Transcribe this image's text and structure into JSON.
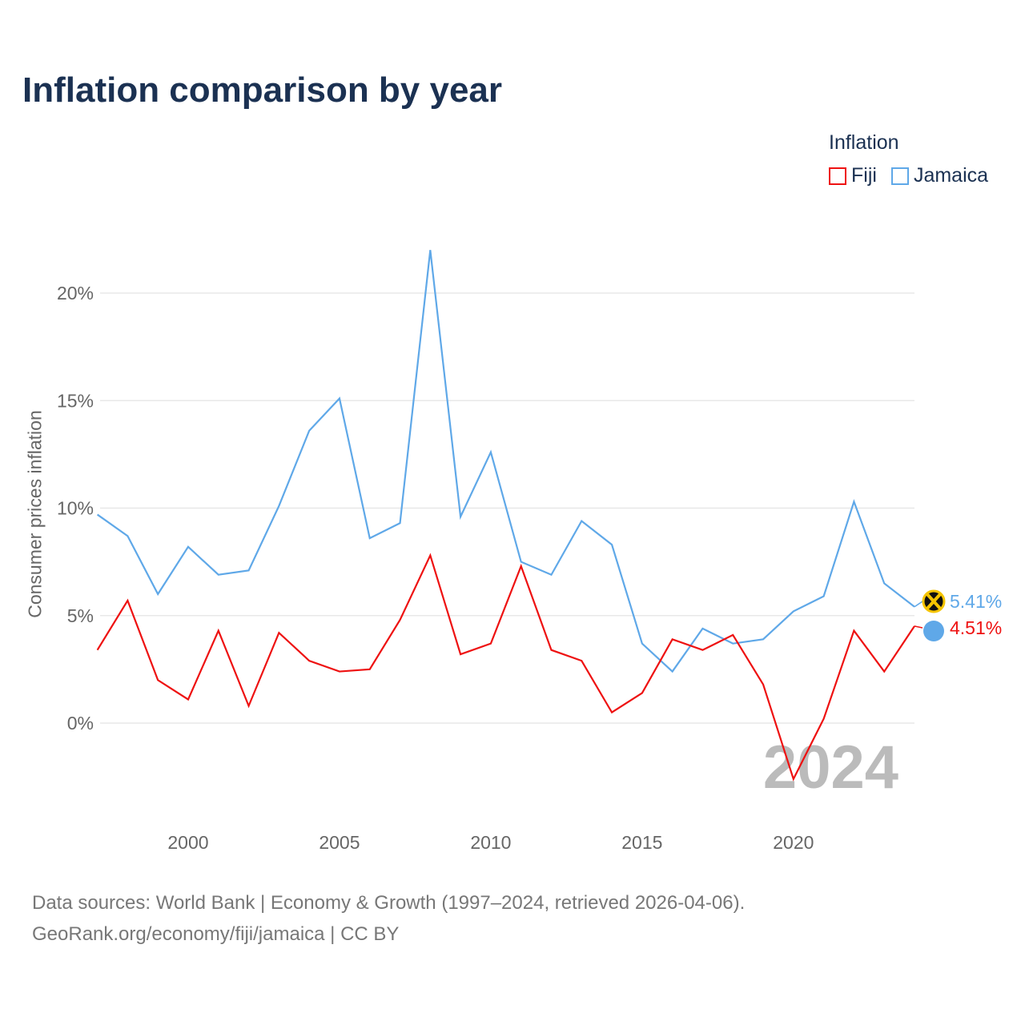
{
  "title": "Inflation comparison by year",
  "legend": {
    "title": "Inflation",
    "items": [
      "Fiji",
      "Jamaica"
    ]
  },
  "footer": {
    "line1": "Data sources: World Bank | Economy & Growth (1997–2024, retrieved 2026-04-06).",
    "line2": "GeoRank.org/economy/fiji/jamaica | CC BY"
  },
  "chart_data": {
    "type": "line",
    "title": "Inflation comparison by year",
    "xlabel": "",
    "ylabel": "Consumer prices inflation",
    "x": [
      1997,
      1998,
      1999,
      2000,
      2001,
      2002,
      2003,
      2004,
      2005,
      2006,
      2007,
      2008,
      2009,
      2010,
      2011,
      2012,
      2013,
      2014,
      2015,
      2016,
      2017,
      2018,
      2019,
      2020,
      2021,
      2022,
      2023,
      2024
    ],
    "series": [
      {
        "name": "Fiji",
        "color": "#ee1111",
        "values": [
          3.4,
          5.7,
          2.0,
          1.1,
          4.3,
          0.8,
          4.2,
          2.9,
          2.4,
          2.5,
          4.8,
          7.8,
          3.2,
          3.7,
          7.3,
          3.4,
          2.9,
          0.5,
          1.4,
          3.9,
          3.4,
          4.1,
          1.8,
          -2.6,
          0.2,
          4.3,
          2.4,
          4.51
        ],
        "end_label": "4.51%"
      },
      {
        "name": "Jamaica",
        "color": "#5fa8e8",
        "values": [
          9.7,
          8.7,
          6.0,
          8.2,
          6.9,
          7.1,
          10.1,
          13.6,
          15.1,
          8.6,
          9.3,
          22.0,
          9.6,
          12.6,
          7.5,
          6.9,
          9.4,
          8.3,
          3.7,
          2.4,
          4.4,
          3.7,
          3.9,
          5.2,
          5.9,
          10.3,
          6.5,
          5.41
        ],
        "end_label": "5.41%"
      }
    ],
    "yticks": [
      0,
      5,
      10,
      15,
      20
    ],
    "ytick_labels": [
      "0%",
      "5%",
      "10%",
      "15%",
      "20%"
    ],
    "xticks": [
      2000,
      2005,
      2010,
      2015,
      2020
    ],
    "xtick_labels": [
      "2000",
      "2005",
      "2010",
      "2015",
      "2020"
    ],
    "ylim": [
      -4,
      24.3
    ],
    "xlim": [
      1997,
      2024
    ],
    "year_watermark": "2024",
    "grid": true,
    "legend_position": "top-right"
  }
}
